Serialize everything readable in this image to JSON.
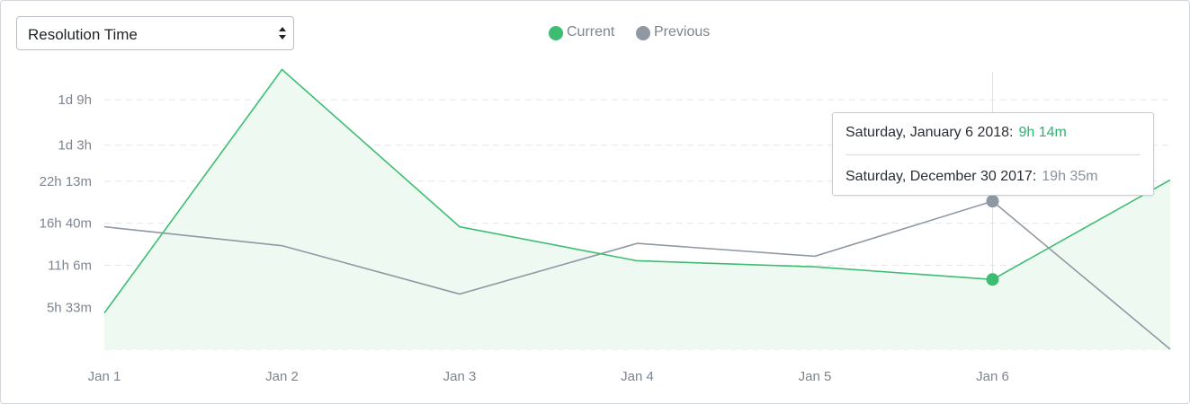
{
  "metric_select": {
    "selected": "Resolution Time"
  },
  "legend": [
    {
      "name": "Current",
      "color": "#3dbd72"
    },
    {
      "name": "Previous",
      "color": "#8f98a3"
    }
  ],
  "tooltip": {
    "current": {
      "date": "Saturday, January 6 2018:",
      "value": "9h 14m"
    },
    "previous": {
      "date": "Saturday, December 30 2017:",
      "value": "19h 35m"
    }
  },
  "chart_data": {
    "type": "area",
    "x_ticks": [
      "Jan 1",
      "Jan 2",
      "Jan 3",
      "Jan 4",
      "Jan 5",
      "Jan 6"
    ],
    "y_ticks": [
      {
        "label": "5h 33m",
        "hours": 5.55
      },
      {
        "label": "11h 6m",
        "hours": 11.1
      },
      {
        "label": "16h 40m",
        "hours": 16.667
      },
      {
        "label": "22h 13m",
        "hours": 22.217
      },
      {
        "label": "1d 3h",
        "hours": 27.0
      },
      {
        "label": "1d 9h",
        "hours": 33.0
      }
    ],
    "y_unit": "hours",
    "ylim": [
      0,
      34
    ],
    "grid": true,
    "legend_position": "top-center",
    "series": [
      {
        "name": "Current",
        "color": "#3dbd72",
        "fill": "#eef9f2",
        "x": [
          0,
          1,
          2,
          3,
          4,
          5,
          6
        ],
        "values": [
          4.8,
          37.0,
          16.2,
          11.7,
          10.9,
          9.23,
          22.4
        ]
      },
      {
        "name": "Previous",
        "color": "#8f98a3",
        "x": [
          0,
          1,
          2,
          3,
          4,
          5,
          6
        ],
        "values": [
          16.2,
          13.7,
          7.3,
          14.0,
          12.3,
          19.58,
          0.0
        ]
      }
    ],
    "highlight_index": 5
  }
}
